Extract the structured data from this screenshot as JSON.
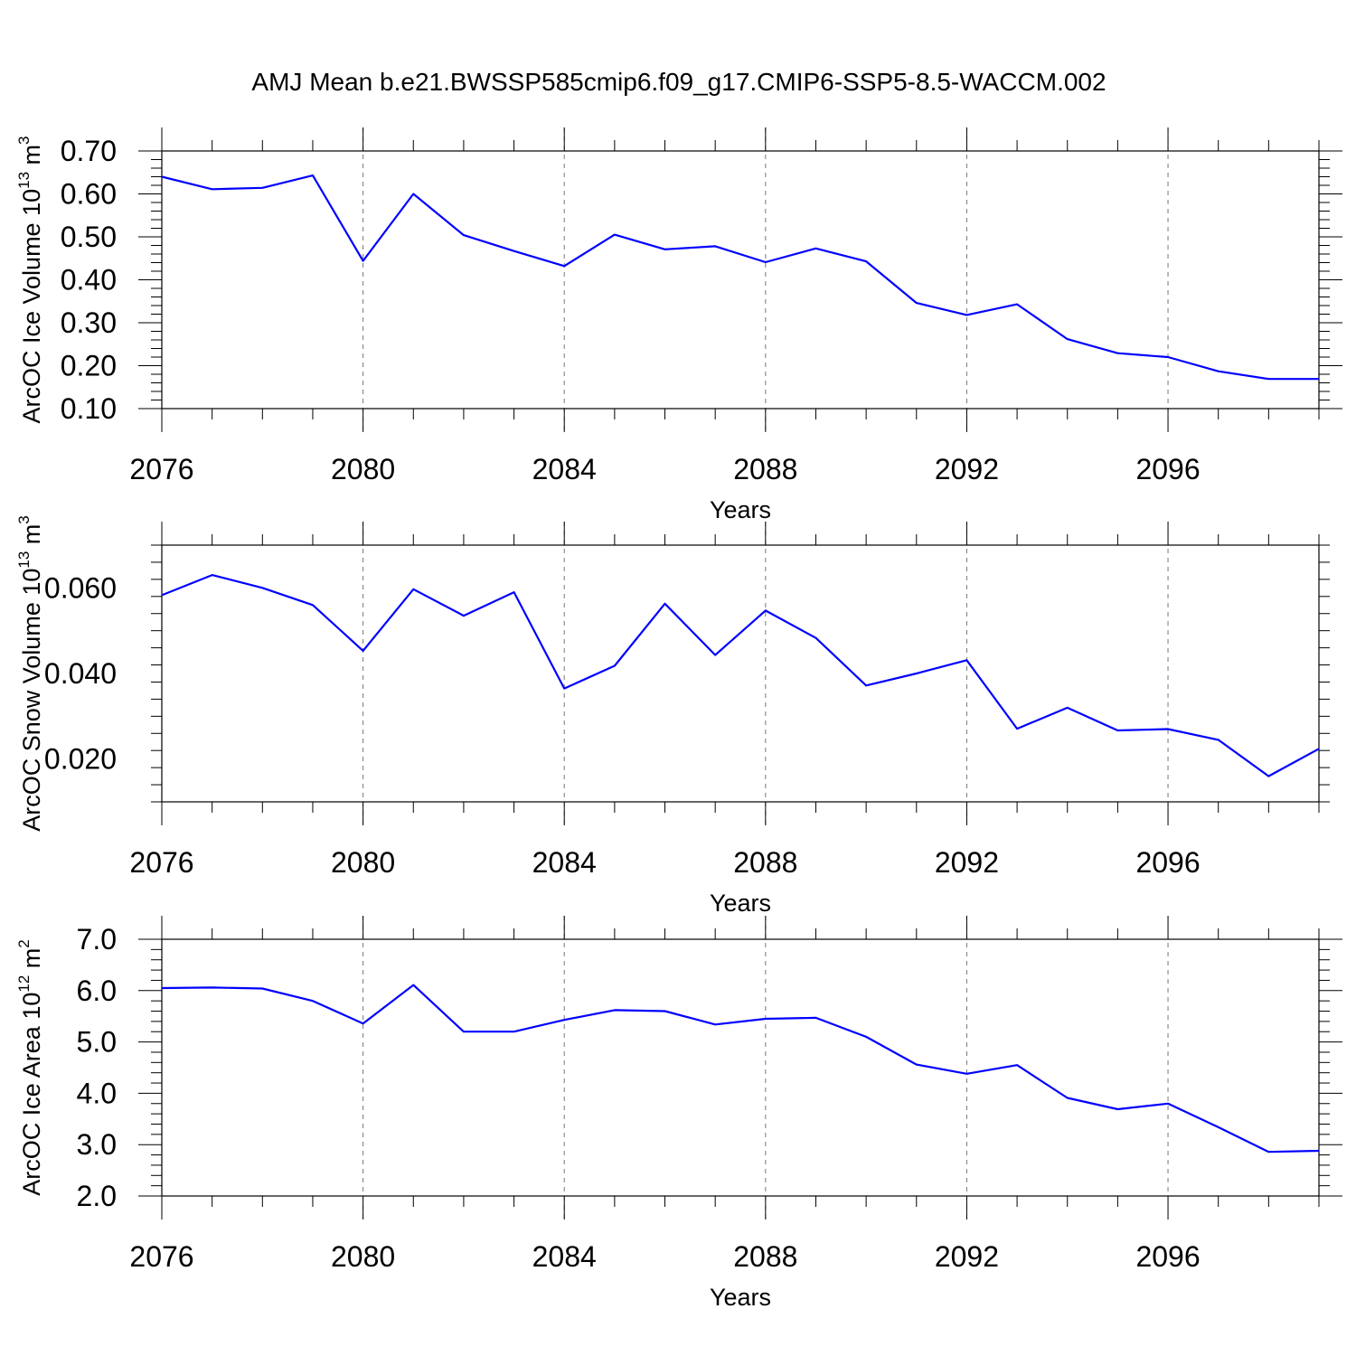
{
  "title": "AMJ Mean b.e21.BWSSP585cmip6.f09_g17.CMIP6-SSP5-8.5-WACCM.002",
  "colors": {
    "series": "#0000ff",
    "axis": "#000000",
    "grid": "#777777"
  },
  "chart_data": [
    {
      "type": "line",
      "ylabel": "ArcOC Ice Volume 10",
      "ylabel_exp": "13",
      "ylabel_unit": " m",
      "ylabel_unit_exp": "3",
      "xlabel": "Years",
      "xlim": [
        2076,
        2099
      ],
      "ylim": [
        0.1,
        0.7
      ],
      "yticks": [
        0.1,
        0.2,
        0.3,
        0.4,
        0.5,
        0.6,
        0.7
      ],
      "ytick_labels": [
        "0.10",
        "0.20",
        "0.30",
        "0.40",
        "0.50",
        "0.60",
        "0.70"
      ],
      "xticks": [
        2076,
        2080,
        2084,
        2088,
        2092,
        2096
      ],
      "xtick_labels": [
        "2076",
        "2080",
        "2084",
        "2088",
        "2092",
        "2096"
      ],
      "grid": "vertical dashed at labeled years",
      "x": [
        2076,
        2077,
        2078,
        2079,
        2080,
        2081,
        2082,
        2083,
        2084,
        2085,
        2086,
        2087,
        2088,
        2089,
        2090,
        2091,
        2092,
        2093,
        2094,
        2095,
        2096,
        2097,
        2098,
        2099
      ],
      "values": [
        0.64,
        0.611,
        0.614,
        0.643,
        0.444,
        0.6,
        0.504,
        0.467,
        0.432,
        0.505,
        0.471,
        0.478,
        0.441,
        0.473,
        0.443,
        0.346,
        0.318,
        0.343,
        0.262,
        0.229,
        0.22,
        0.187,
        0.169,
        0.169
      ]
    },
    {
      "type": "line",
      "ylabel": "ArcOC Snow Volume 10",
      "ylabel_exp": "13",
      "ylabel_unit": " m",
      "ylabel_unit_exp": "3",
      "xlabel": "Years",
      "xlim": [
        2076,
        2099
      ],
      "ylim": [
        0.01,
        0.07
      ],
      "yticks": [
        0.02,
        0.04,
        0.06
      ],
      "ytick_labels": [
        "0.020",
        "0.040",
        "0.060"
      ],
      "xticks": [
        2076,
        2080,
        2084,
        2088,
        2092,
        2096
      ],
      "xtick_labels": [
        "2076",
        "2080",
        "2084",
        "2088",
        "2092",
        "2096"
      ],
      "grid": "vertical dashed at labeled years",
      "x": [
        2076,
        2077,
        2078,
        2079,
        2080,
        2081,
        2082,
        2083,
        2084,
        2085,
        2086,
        2087,
        2088,
        2089,
        2090,
        2091,
        2092,
        2093,
        2094,
        2095,
        2096,
        2097,
        2098,
        2099
      ],
      "values": [
        0.0583,
        0.063,
        0.06,
        0.056,
        0.0453,
        0.0597,
        0.0535,
        0.059,
        0.0365,
        0.0418,
        0.0563,
        0.0443,
        0.0547,
        0.0483,
        0.0372,
        0.04,
        0.0431,
        0.0271,
        0.032,
        0.0267,
        0.027,
        0.0245,
        0.016,
        0.0224
      ]
    },
    {
      "type": "line",
      "ylabel": "ArcOC Ice Area 10",
      "ylabel_exp": "12",
      "ylabel_unit": " m",
      "ylabel_unit_exp": "2",
      "xlabel": "Years",
      "xlim": [
        2076,
        2099
      ],
      "ylim": [
        2.0,
        7.0
      ],
      "yticks": [
        2.0,
        3.0,
        4.0,
        5.0,
        6.0,
        7.0
      ],
      "ytick_labels": [
        "2.0",
        "3.0",
        "4.0",
        "5.0",
        "6.0",
        "7.0"
      ],
      "xticks": [
        2076,
        2080,
        2084,
        2088,
        2092,
        2096
      ],
      "xtick_labels": [
        "2076",
        "2080",
        "2084",
        "2088",
        "2092",
        "2096"
      ],
      "grid": "vertical dashed at labeled years",
      "x": [
        2076,
        2077,
        2078,
        2079,
        2080,
        2081,
        2082,
        2083,
        2084,
        2085,
        2086,
        2087,
        2088,
        2089,
        2090,
        2091,
        2092,
        2093,
        2094,
        2095,
        2096,
        2097,
        2098,
        2099
      ],
      "values": [
        6.05,
        6.06,
        6.04,
        5.8,
        5.36,
        6.11,
        5.2,
        5.2,
        5.43,
        5.62,
        5.6,
        5.34,
        5.45,
        5.47,
        5.1,
        4.56,
        4.38,
        4.55,
        3.91,
        3.69,
        3.8,
        3.34,
        2.86,
        2.88
      ]
    }
  ]
}
